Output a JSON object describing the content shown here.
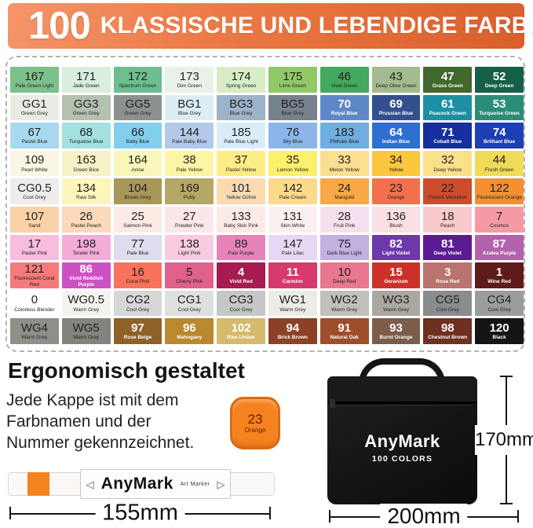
{
  "header": {
    "number": "100",
    "title": "KLASSISCHE UND LEBENDIGE FARBEN",
    "bg_from": "#f4966a",
    "bg_to": "#d95e2b"
  },
  "grid": {
    "cells": [
      {
        "n": "167",
        "c": "Pale Green Light",
        "bg": "#7cc08a"
      },
      {
        "n": "171",
        "c": "Jade Green",
        "bg": "#d9eedd"
      },
      {
        "n": "172",
        "c": "Spectrum Green",
        "bg": "#6cbd90"
      },
      {
        "n": "173",
        "c": "Dim Green",
        "bg": "#e9f2e6"
      },
      {
        "n": "174",
        "c": "Spring Green",
        "bg": "#d8edc6"
      },
      {
        "n": "175",
        "c": "Lime Green",
        "bg": "#92c968"
      },
      {
        "n": "46",
        "c": "Vivid Green",
        "bg": "#44a85e"
      },
      {
        "n": "43",
        "c": "Deep Olive Green",
        "bg": "#a3bb8e"
      },
      {
        "n": "47",
        "c": "Grass Green",
        "bg": "#41682d",
        "tx": "l"
      },
      {
        "n": "52",
        "c": "Deep Green",
        "bg": "#16604a",
        "tx": "l"
      },
      {
        "n": "GG1",
        "c": "Green Grey",
        "bg": "#e9ece5"
      },
      {
        "n": "GG3",
        "c": "Green Grey",
        "bg": "#b4c0b0"
      },
      {
        "n": "GG5",
        "c": "Green Grey",
        "bg": "#8b918e"
      },
      {
        "n": "BG1",
        "c": "Blue Grey",
        "bg": "#dceef4"
      },
      {
        "n": "BG3",
        "c": "Blue Grey",
        "bg": "#9cb3c9"
      },
      {
        "n": "BG5",
        "c": "Blue Grey",
        "bg": "#78828e"
      },
      {
        "n": "70",
        "c": "Royal Blue",
        "bg": "#5e87c8",
        "tx": "l"
      },
      {
        "n": "69",
        "c": "Prussian Blue",
        "bg": "#32508f",
        "tx": "l"
      },
      {
        "n": "61",
        "c": "Peacock Green",
        "bg": "#1d8fa5",
        "tx": "l"
      },
      {
        "n": "53",
        "c": "Turquoise Green",
        "bg": "#2a8d77",
        "tx": "l"
      },
      {
        "n": "67",
        "c": "Pastel Blue",
        "bg": "#a9d9f0"
      },
      {
        "n": "68",
        "c": "Turquoise Blue",
        "bg": "#a2e1e0"
      },
      {
        "n": "66",
        "c": "Baby Blue",
        "bg": "#82cfed"
      },
      {
        "n": "144",
        "c": "Pale Baby Blue",
        "bg": "#b3c9ea"
      },
      {
        "n": "185",
        "c": "Pale Blue Light",
        "bg": "#d8edf8"
      },
      {
        "n": "76",
        "c": "Sky Blue",
        "bg": "#8cb6ea"
      },
      {
        "n": "183",
        "c": "Phthalo Blue",
        "bg": "#6faede"
      },
      {
        "n": "64",
        "c": "Indian Blue",
        "bg": "#2e6fd2",
        "tx": "l"
      },
      {
        "n": "71",
        "c": "Cobalt Blue",
        "bg": "#162f9e",
        "tx": "l"
      },
      {
        "n": "74",
        "c": "Brilliant Blue",
        "bg": "#1d3eb4",
        "tx": "l"
      },
      {
        "n": "109",
        "c": "Pearl White",
        "bg": "#faf6e3"
      },
      {
        "n": "163",
        "c": "Green Bice",
        "bg": "#f4f2c6"
      },
      {
        "n": "164",
        "c": "Anise",
        "bg": "#f8f6bb"
      },
      {
        "n": "38",
        "c": "Pale Yellow",
        "bg": "#fdf4a4"
      },
      {
        "n": "37",
        "c": "Pastel Yellow",
        "bg": "#fdec85"
      },
      {
        "n": "35",
        "c": "Lemon Yellow",
        "bg": "#fdf06c"
      },
      {
        "n": "33",
        "c": "Melon Yellow",
        "bg": "#fbde90"
      },
      {
        "n": "34",
        "c": "Yellow",
        "bg": "#fbc73e"
      },
      {
        "n": "32",
        "c": "Deep Yellow",
        "bg": "#fbe08a"
      },
      {
        "n": "44",
        "c": "Fresh Green",
        "bg": "#f0da58"
      },
      {
        "n": "CG0.5",
        "c": "Cool Grey",
        "bg": "#ededeb"
      },
      {
        "n": "134",
        "c": "Raw Silk",
        "bg": "#fdf5bb"
      },
      {
        "n": "104",
        "c": "Brown Grey",
        "bg": "#a99659"
      },
      {
        "n": "169",
        "c": "Putty",
        "bg": "#b5a766"
      },
      {
        "n": "101",
        "c": "Yellow Ochre",
        "bg": "#fbdab2"
      },
      {
        "n": "142",
        "c": "Pale Cream",
        "bg": "#fdd98c"
      },
      {
        "n": "24",
        "c": "Marigold",
        "bg": "#f9a845"
      },
      {
        "n": "23",
        "c": "Orange",
        "bg": "#f2714c"
      },
      {
        "n": "22",
        "c": "French Vermilion",
        "bg": "#cc4c2c"
      },
      {
        "n": "122",
        "c": "Fluorescent Orange",
        "bg": "#f29033"
      },
      {
        "n": "107",
        "c": "Sand",
        "bg": "#fbd2a8"
      },
      {
        "n": "26",
        "c": "Pastel Peach",
        "bg": "#fcd9ba"
      },
      {
        "n": "25",
        "c": "Salmon Pink",
        "bg": "#fceae4"
      },
      {
        "n": "27",
        "c": "Powder Pink",
        "bg": "#fbe6ea"
      },
      {
        "n": "133",
        "c": "Baby Skin Pink",
        "bg": "#fceae6"
      },
      {
        "n": "131",
        "c": "Skin White",
        "bg": "#fbf0f0"
      },
      {
        "n": "28",
        "c": "Fruit Pink",
        "bg": "#f6dfee"
      },
      {
        "n": "136",
        "c": "Blush",
        "bg": "#fadfe4"
      },
      {
        "n": "18",
        "c": "Peach",
        "bg": "#f8cacd"
      },
      {
        "n": "7",
        "c": "Cosmos",
        "bg": "#f59aa5"
      },
      {
        "n": "17",
        "c": "Pastel Pink",
        "bg": "#f9bcdf"
      },
      {
        "n": "198",
        "c": "Tender Pink",
        "bg": "#f5abd7"
      },
      {
        "n": "77",
        "c": "Pale Blue",
        "bg": "#dddded"
      },
      {
        "n": "138",
        "c": "Light Pink",
        "bg": "#f9cbe3"
      },
      {
        "n": "89",
        "c": "Pale Purple",
        "bg": "#e783bb"
      },
      {
        "n": "147",
        "c": "Pale Lilac",
        "bg": "#e6d7f2"
      },
      {
        "n": "75",
        "c": "Dark Blue Light",
        "bg": "#c2b0e0"
      },
      {
        "n": "82",
        "c": "Light Violet",
        "bg": "#6d38ab",
        "tx": "l"
      },
      {
        "n": "81",
        "c": "Deep Violet",
        "bg": "#5d1b93",
        "tx": "l"
      },
      {
        "n": "87",
        "c": "Azalea Purple",
        "bg": "#b263ab",
        "tx": "l"
      },
      {
        "n": "121",
        "c": "Fluorescent Coral Red",
        "bg": "#f57a7c"
      },
      {
        "n": "86",
        "c": "Vivid Reddish Purple",
        "bg": "#cc52c4",
        "tx": "l"
      },
      {
        "n": "16",
        "c": "Coral Pink",
        "bg": "#f8725c"
      },
      {
        "n": "5",
        "c": "Cherry Pink",
        "bg": "#e0618b"
      },
      {
        "n": "4",
        "c": "Vivid Red",
        "bg": "#a81a52",
        "tx": "l"
      },
      {
        "n": "11",
        "c": "Carmine",
        "bg": "#d63a6c",
        "tx": "l"
      },
      {
        "n": "10",
        "c": "Deep Red",
        "bg": "#e97790"
      },
      {
        "n": "15",
        "c": "Geranium",
        "bg": "#cc3129",
        "tx": "l"
      },
      {
        "n": "3",
        "c": "Rose Red",
        "bg": "#ba736f",
        "tx": "l"
      },
      {
        "n": "1",
        "c": "Wine Red",
        "bg": "#5e1b1a",
        "tx": "l"
      },
      {
        "n": "0",
        "c": "Colorless Blender",
        "bg": "#ffffff"
      },
      {
        "n": "WG0.5",
        "c": "Warm Grey",
        "bg": "#f4f2ee"
      },
      {
        "n": "CG2",
        "c": "Cool Grey",
        "bg": "#d6d8d8"
      },
      {
        "n": "CG1",
        "c": "Cool Grey",
        "bg": "#dee0de"
      },
      {
        "n": "CG3",
        "c": "Cool Grey",
        "bg": "#c6c8c8"
      },
      {
        "n": "WG1",
        "c": "Warm Grey",
        "bg": "#edebe5"
      },
      {
        "n": "WG2",
        "c": "Warm Grey",
        "bg": "#c2c0ba"
      },
      {
        "n": "WG3",
        "c": "Warm Grey",
        "bg": "#aaa8a1"
      },
      {
        "n": "CG5",
        "c": "Cool Grey",
        "bg": "#8a8c8e"
      },
      {
        "n": "CG4",
        "c": "Cool Grey",
        "bg": "#9a9c9e"
      },
      {
        "n": "WG4",
        "c": "Warm Grey",
        "bg": "#908e88"
      },
      {
        "n": "WG5",
        "c": "Warm Grey",
        "bg": "#85837d"
      },
      {
        "n": "97",
        "c": "Rose Beige",
        "bg": "#8d6128",
        "tx": "l"
      },
      {
        "n": "96",
        "c": "Mahogany",
        "bg": "#ba882e",
        "tx": "l"
      },
      {
        "n": "102",
        "c": "Raw Umber",
        "bg": "#d6ba6b",
        "tx": "l"
      },
      {
        "n": "94",
        "c": "Brick Brown",
        "bg": "#8c4126",
        "tx": "l"
      },
      {
        "n": "91",
        "c": "Natural Oak",
        "bg": "#9e4e28",
        "tx": "l"
      },
      {
        "n": "93",
        "c": "Burnt Orange",
        "bg": "#7c5c4a",
        "tx": "l"
      },
      {
        "n": "98",
        "c": "Chestnut Brown",
        "bg": "#6e3020",
        "tx": "l"
      },
      {
        "n": "120",
        "c": "Black",
        "bg": "#141414",
        "tx": "l"
      }
    ]
  },
  "ergo": {
    "heading": "Ergonomisch gestaltet",
    "lines": [
      "Jede Kappe ist mit dem",
      "Farbnamen und der",
      "Nummer gekennzeichnet."
    ]
  },
  "cap": {
    "number": "23",
    "name": "Orange",
    "color": "#f5821e",
    "border_color": "#dd6a0e",
    "text_color": "#5f2303"
  },
  "marker": {
    "brand": "AnyMark",
    "subtitle": "Art Marker",
    "nib_left_glyph": "◁",
    "nib_right_glyph": "▷",
    "tip_color": "#f5821e"
  },
  "case": {
    "brand": "AnyMark",
    "colors_label": "100 COLORS",
    "color": "#141414"
  },
  "dims": {
    "marker_length": "155mm",
    "case_width": "200mm",
    "case_height": "170mm"
  }
}
